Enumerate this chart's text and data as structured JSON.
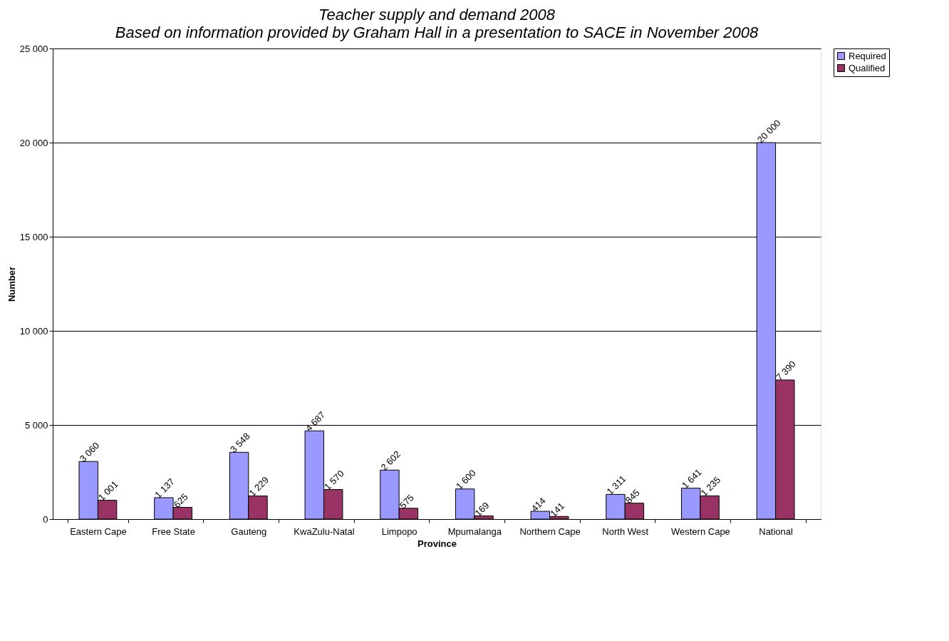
{
  "chart_data": {
    "type": "bar",
    "title": "Teacher supply and demand 2008",
    "subtitle": "Based on information provided by Graham Hall in a presentation to SACE in November 2008",
    "xlabel": "Province",
    "ylabel": "Number",
    "categories": [
      "Eastern Cape",
      "Free State",
      "Gauteng",
      "KwaZulu-Natal",
      "Limpopo",
      "Mpumalanga",
      "Northern Cape",
      "North West",
      "Western Cape",
      "National"
    ],
    "series": [
      {
        "name": "Required",
        "color": "#9999ff",
        "values": [
          3060,
          1137,
          3548,
          4687,
          2602,
          1600,
          414,
          1311,
          1641,
          20000
        ],
        "value_labels": [
          "3 060",
          "1 137",
          "3 548",
          "4 687",
          "2 602",
          "1 600",
          "414",
          "1 311",
          "1 641",
          "20 000"
        ]
      },
      {
        "name": "Qualified",
        "color": "#993366",
        "values": [
          1001,
          625,
          1229,
          1570,
          575,
          169,
          141,
          845,
          1235,
          7390
        ],
        "value_labels": [
          "1 001",
          "625",
          "1 229",
          "1 570",
          "575",
          "169",
          "141",
          "845",
          "1 235",
          "7 390"
        ]
      }
    ],
    "ylim": [
      0,
      25000
    ],
    "yticks": [
      {
        "value": 0,
        "label": "0"
      },
      {
        "value": 5000,
        "label": "5 000"
      },
      {
        "value": 10000,
        "label": "10 000"
      },
      {
        "value": 15000,
        "label": "15 000"
      },
      {
        "value": 20000,
        "label": "20 000"
      },
      {
        "value": 25000,
        "label": "25 000"
      }
    ],
    "grid": "y",
    "legend": "right"
  }
}
